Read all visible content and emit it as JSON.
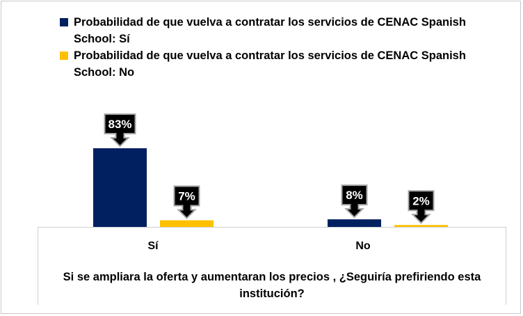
{
  "chart_data": {
    "type": "bar",
    "title": "",
    "xlabel": "Si se ampliara la oferta y aumentaran los precios , ¿Seguiría prefiriendo esta institución?",
    "ylabel": "",
    "categories": [
      "Sí",
      "No"
    ],
    "series": [
      {
        "name": "Probabilidad de que vuelva a contratar los servicios de CENAC Spanish School: Sí",
        "color": "#002060",
        "values": [
          83,
          8
        ],
        "labels": [
          "83%",
          "8%"
        ]
      },
      {
        "name": "Probabilidad de que vuelva a contratar los servicios de CENAC Spanish School: No",
        "color": "#FFC000",
        "values": [
          7,
          2
        ],
        "labels": [
          "7%",
          "2%"
        ]
      }
    ],
    "ylim": [
      0,
      100
    ],
    "grid": false,
    "legend_position": "top"
  }
}
